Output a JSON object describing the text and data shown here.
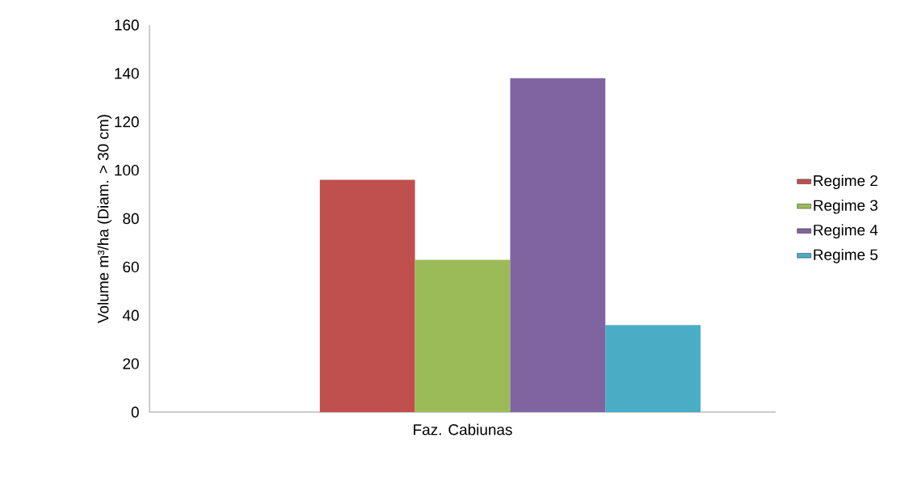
{
  "chart_data": {
    "type": "bar",
    "ylabel": "Volume m³/ha (Diam. > 30 cm)",
    "categories": [
      "Faz. Cabiunas"
    ],
    "series": [
      {
        "name": "Regime 2",
        "color": "#c0504d",
        "values": [
          96
        ]
      },
      {
        "name": "Regime 3",
        "color": "#9bbb59",
        "values": [
          63
        ]
      },
      {
        "name": "Regime 4",
        "color": "#8064a2",
        "values": [
          138
        ]
      },
      {
        "name": "Regime 5",
        "color": "#4bacc6",
        "values": [
          36
        ]
      }
    ],
    "ylim": [
      0,
      160
    ],
    "yticks": [
      0,
      20,
      40,
      60,
      80,
      100,
      120,
      140,
      160
    ],
    "grid": false,
    "legend": "right"
  }
}
